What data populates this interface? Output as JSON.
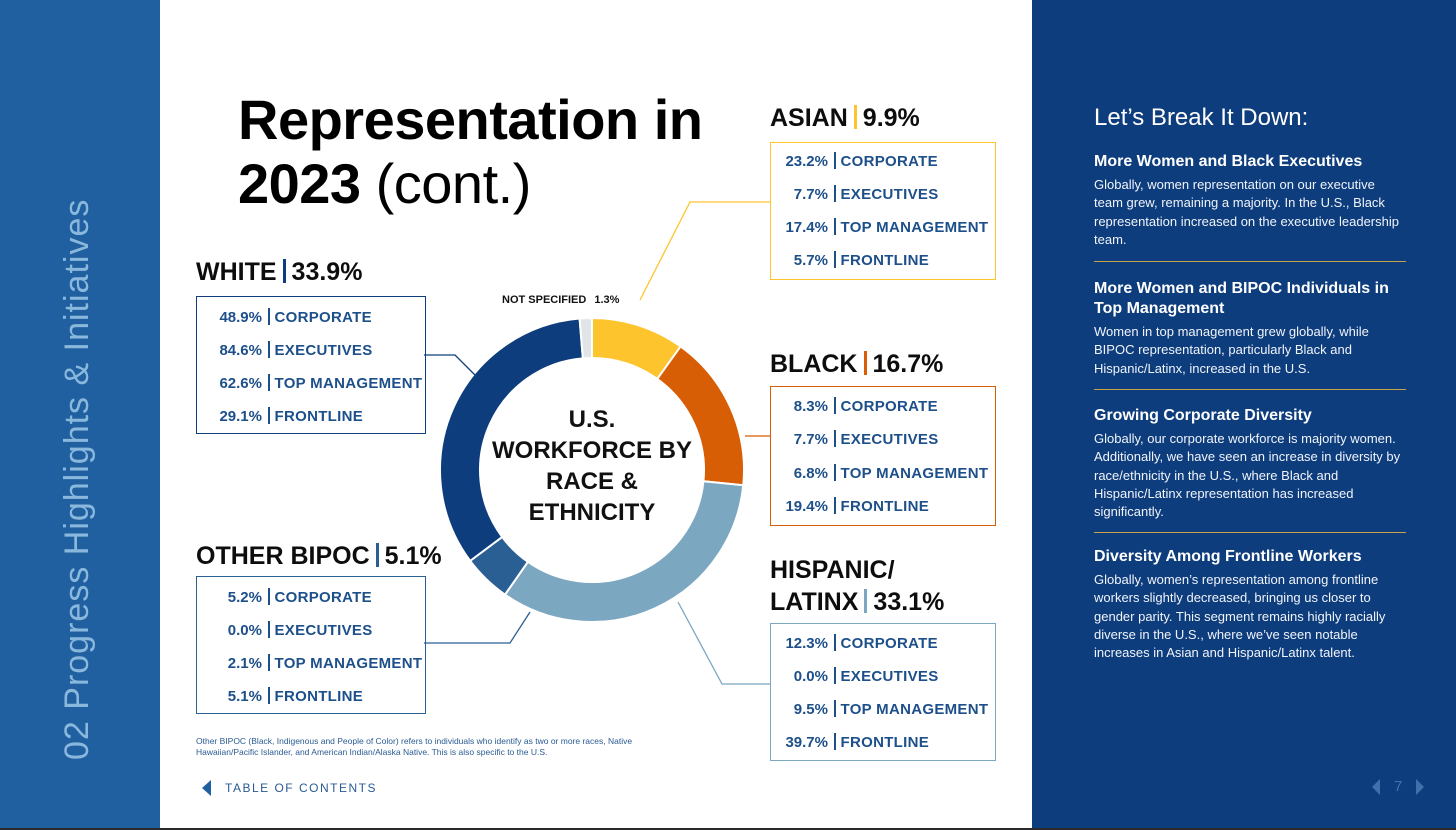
{
  "side_label": "02   Progress Highlights & Initiatives",
  "title": {
    "bold": "Representation in 2023",
    "normal": "(cont.)"
  },
  "center_label": "U.S. WORKFORCE BY RACE & ETHNICITY",
  "colors": {
    "white": "#0e3d7d",
    "asian": "#fdc42d",
    "black": "#d75e05",
    "hispanic": "#7ba7c0",
    "other": "#2a5f94",
    "not_specified": "#e2e5e8"
  },
  "chart_data": {
    "type": "pie",
    "style": "donut",
    "title": "U.S. WORKFORCE BY RACE & ETHNICITY",
    "slices": [
      {
        "name": "ASIAN",
        "value": 9.9,
        "color": "#fdc42d"
      },
      {
        "name": "BLACK",
        "value": 16.7,
        "color": "#d75e05"
      },
      {
        "name": "HISPANIC/LATINX",
        "value": 33.1,
        "color": "#7ba7c0"
      },
      {
        "name": "OTHER BIPOC",
        "value": 5.1,
        "color": "#2a5f94"
      },
      {
        "name": "WHITE",
        "value": 33.9,
        "color": "#0e3d7d"
      },
      {
        "name": "NOT SPECIFIED",
        "value": 1.3,
        "color": "#e2e5e8"
      }
    ]
  },
  "groups": {
    "white": {
      "name": "WHITE",
      "pct": "33.9%",
      "rows": [
        {
          "v": "48.9%",
          "label": "CORPORATE"
        },
        {
          "v": "84.6%",
          "label": "EXECUTIVES"
        },
        {
          "v": "62.6%",
          "label": "TOP MANAGEMENT"
        },
        {
          "v": "29.1%",
          "label": "FRONTLINE"
        }
      ]
    },
    "other": {
      "name": "OTHER BIPOC",
      "pct": "5.1%",
      "rows": [
        {
          "v": "5.2%",
          "label": "CORPORATE"
        },
        {
          "v": "0.0%",
          "label": "EXECUTIVES"
        },
        {
          "v": "2.1%",
          "label": "TOP MANAGEMENT"
        },
        {
          "v": "5.1%",
          "label": "FRONTLINE"
        }
      ]
    },
    "asian": {
      "name": "ASIAN",
      "pct": "9.9%",
      "rows": [
        {
          "v": "23.2%",
          "label": "CORPORATE"
        },
        {
          "v": "7.7%",
          "label": "EXECUTIVES"
        },
        {
          "v": "17.4%",
          "label": "TOP MANAGEMENT"
        },
        {
          "v": "5.7%",
          "label": "FRONTLINE"
        }
      ]
    },
    "black": {
      "name": "BLACK",
      "pct": "16.7%",
      "rows": [
        {
          "v": "8.3%",
          "label": "CORPORATE"
        },
        {
          "v": "7.7%",
          "label": "EXECUTIVES"
        },
        {
          "v": "6.8%",
          "label": "TOP MANAGEMENT"
        },
        {
          "v": "19.4%",
          "label": "FRONTLINE"
        }
      ]
    },
    "hispanic": {
      "name_line1": "HISPANIC/",
      "name_line2": "LATINX",
      "pct": "33.1%",
      "rows": [
        {
          "v": "12.3%",
          "label": "CORPORATE"
        },
        {
          "v": "0.0%",
          "label": "EXECUTIVES"
        },
        {
          "v": "9.5%",
          "label": "TOP MANAGEMENT"
        },
        {
          "v": "39.7%",
          "label": "FRONTLINE"
        }
      ]
    }
  },
  "not_specified": {
    "label": "NOT SPECIFIED",
    "pct": "1.3%"
  },
  "footnote": "Other BIPOC (Black, Indigenous and People of Color) refers to individuals who identify as two or more races, Native Hawaiian/Pacific Islander, and American Indian/Alaska Native. This is also specific to the U.S.",
  "toc_label": "TABLE OF CONTENTS",
  "right_panel": {
    "title": "Let’s Break It Down:",
    "sections": [
      {
        "heading": "More Women and Black Executives",
        "body": "Globally, women representation on our executive team grew, remaining a majority. In the U.S., Black representation increased on the executive leadership team."
      },
      {
        "heading": "More Women and BIPOC Individuals in Top Management",
        "body": "Women in top management grew globally, while BIPOC representation, particularly Black and Hispanic/Latinx, increased in the U.S."
      },
      {
        "heading": "Growing Corporate Diversity",
        "body": "Globally, our corporate workforce is majority women. Additionally, we have seen an increase in diversity by race/ethnicity in the U.S., where Black and Hispanic/Latinx representation has increased significantly."
      },
      {
        "heading": "Diversity Among Frontline Workers",
        "body": "Globally, women’s representation among frontline workers slightly decreased, bringing us closer to gender parity. This segment remains highly racially diverse in the U.S., where we’ve seen notable increases in Asian and Hispanic/Latinx talent."
      }
    ]
  },
  "page_number": "7"
}
